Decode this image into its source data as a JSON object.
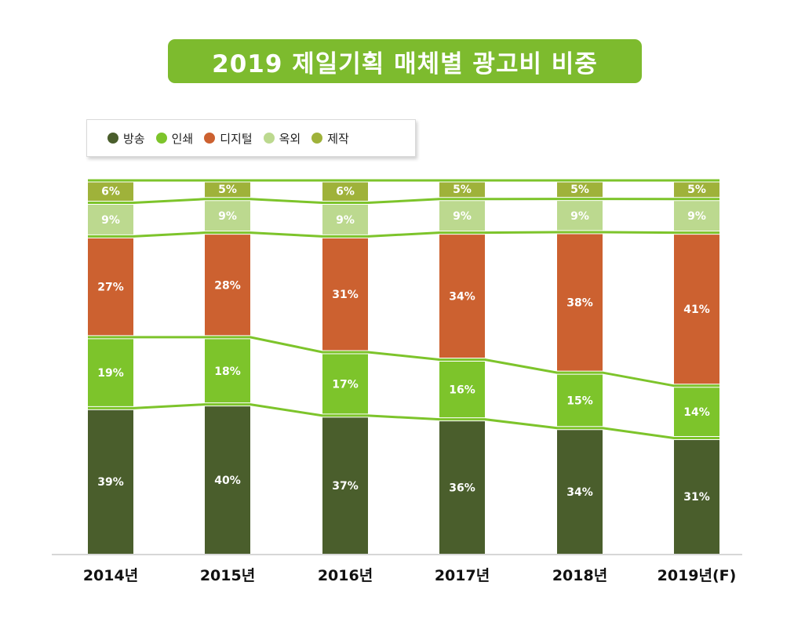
{
  "chart_data": {
    "type": "bar",
    "stacked": true,
    "title": "2019 제일기획 매체별 광고비 비중",
    "categories": [
      "2014년",
      "2015년",
      "2016년",
      "2017년",
      "2018년",
      "2019년(F)"
    ],
    "series": [
      {
        "name": "방송",
        "color": "#4a5e2c",
        "values": [
          39,
          40,
          37,
          36,
          34,
          31
        ]
      },
      {
        "name": "인쇄",
        "color": "#7dc42b",
        "values": [
          19,
          18,
          17,
          16,
          15,
          14
        ]
      },
      {
        "name": "디지털",
        "color": "#cc6130",
        "values": [
          27,
          28,
          31,
          34,
          38,
          41
        ]
      },
      {
        "name": "옥외",
        "color": "#bcd98f",
        "values": [
          9,
          9,
          9,
          9,
          9,
          9
        ]
      },
      {
        "name": "제작",
        "color": "#9fb23a",
        "values": [
          6,
          5,
          6,
          5,
          5,
          5
        ]
      }
    ],
    "value_suffix": "%",
    "connector_color": "#7dc42b",
    "legend_position": "top-left",
    "xlabel": "",
    "ylabel": "",
    "ylim": [
      0,
      100
    ]
  }
}
